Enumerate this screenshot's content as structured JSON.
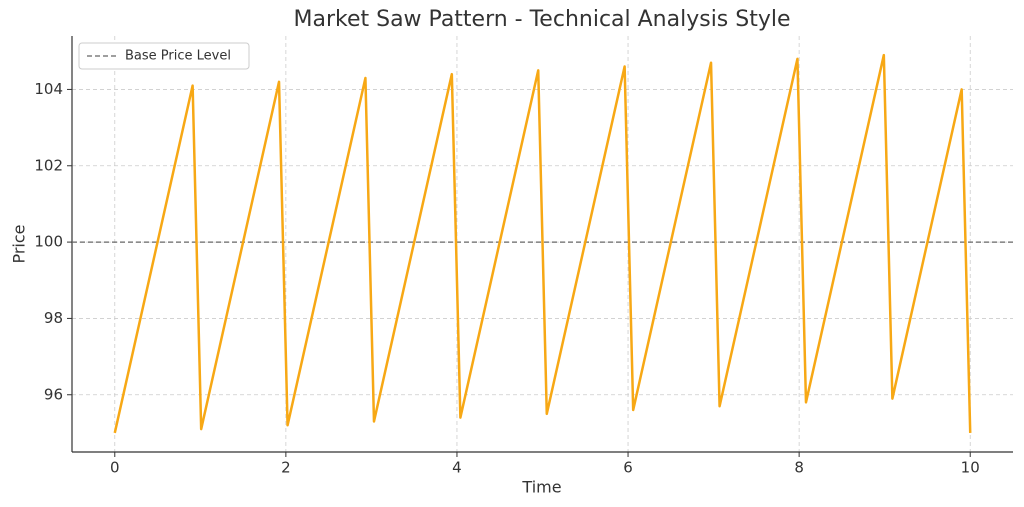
{
  "chart_data": {
    "type": "line",
    "title": "Market Saw Pattern - Technical Analysis Style",
    "x_label": "Time",
    "y_label": "Price",
    "x": [
      0,
      0.91,
      1.01,
      1.92,
      2.02,
      2.93,
      3.03,
      3.94,
      4.04,
      4.95,
      5.05,
      5.96,
      6.06,
      6.97,
      7.07,
      7.98,
      8.08,
      8.99,
      9.09,
      9.9,
      10.0
    ],
    "series": [
      {
        "color": "#f7a815",
        "values": [
          95.0,
          104.1,
          95.1,
          104.2,
          95.2,
          104.3,
          95.3,
          104.4,
          95.4,
          104.5,
          95.5,
          104.6,
          95.6,
          104.7,
          95.7,
          104.8,
          95.8,
          104.9,
          95.9,
          104.0,
          95.0
        ]
      }
    ],
    "reference_lines": [
      {
        "name": "Base Price Level",
        "value": 100,
        "color": "#666666"
      }
    ],
    "xlim": [
      -0.5,
      10.5
    ],
    "ylim": [
      94.5,
      105.4
    ],
    "xticks": [
      0,
      2,
      4,
      6,
      8,
      10
    ],
    "yticks": [
      96,
      98,
      100,
      102,
      104
    ],
    "grid": true,
    "legend_position": "upper-left"
  }
}
